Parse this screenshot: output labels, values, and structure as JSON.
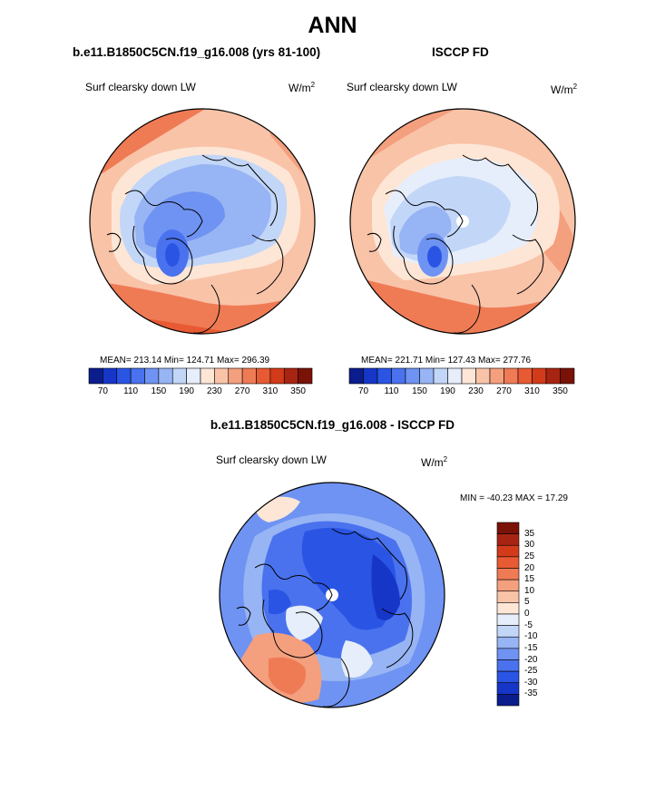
{
  "page": {
    "title": "ANN",
    "diff_title": "b.e11.B1850C5CN.f19_g16.008 - ISCCP FD"
  },
  "panels": [
    {
      "case_title": "b.e11.B1850C5CN.f19_g16.008 (yrs 81-100)",
      "variable": "Surf clearsky down LW",
      "units": "W/m",
      "units_exp": "2",
      "stats": "MEAN= 213.14  Min= 124.71  Max= 296.39"
    },
    {
      "case_title": "ISCCP FD",
      "variable": "Surf clearsky down LW",
      "units": "W/m",
      "units_exp": "2",
      "stats": "MEAN= 221.71  Min= 127.43  Max= 277.76"
    },
    {
      "case_title": "b.e11.B1850C5CN.f19_g16.008 - ISCCP FD",
      "variable": "Surf clearsky down LW",
      "units": "W/m",
      "units_exp": "2",
      "stats": "MIN = -40.23 MAX =  17.29"
    }
  ],
  "chart_data": [
    {
      "type": "heatmap",
      "projection": "north-polar-stereographic",
      "title": "b.e11.B1850C5CN.f19_g16.008 (yrs 81-100)",
      "variable": "Surf clearsky down LW",
      "units": "W/m2",
      "mean": 213.14,
      "min": 124.71,
      "max": 296.39,
      "colorbar_levels": [
        70,
        90,
        110,
        130,
        150,
        170,
        190,
        210,
        230,
        250,
        270,
        290,
        310,
        330,
        350
      ],
      "colorbar_tick_labels": [
        "70",
        "110",
        "150",
        "190",
        "230",
        "270",
        "310",
        "350"
      ],
      "colors": [
        "#0b1d8c",
        "#1636c8",
        "#2a55e4",
        "#4a72ee",
        "#6f93f2",
        "#97b4f4",
        "#c2d6f8",
        "#e6eefb",
        "#fde6d6",
        "#f9c3a8",
        "#f49f7e",
        "#ef7b55",
        "#e85a33",
        "#d23b1a",
        "#a82412",
        "#7a1208"
      ]
    },
    {
      "type": "heatmap",
      "projection": "north-polar-stereographic",
      "title": "ISCCP FD",
      "variable": "Surf clearsky down LW",
      "units": "W/m2",
      "mean": 221.71,
      "min": 127.43,
      "max": 277.76,
      "colorbar_levels": [
        70,
        90,
        110,
        130,
        150,
        170,
        190,
        210,
        230,
        250,
        270,
        290,
        310,
        330,
        350
      ],
      "colorbar_tick_labels": [
        "70",
        "110",
        "150",
        "190",
        "230",
        "270",
        "310",
        "350"
      ],
      "colors": [
        "#0b1d8c",
        "#1636c8",
        "#2a55e4",
        "#4a72ee",
        "#6f93f2",
        "#97b4f4",
        "#c2d6f8",
        "#e6eefb",
        "#fde6d6",
        "#f9c3a8",
        "#f49f7e",
        "#ef7b55",
        "#e85a33",
        "#d23b1a",
        "#a82412",
        "#7a1208"
      ]
    },
    {
      "type": "heatmap",
      "projection": "north-polar-stereographic",
      "title": "b.e11.B1850C5CN.f19_g16.008 - ISCCP FD",
      "variable": "Surf clearsky down LW",
      "units": "W/m2",
      "min": -40.23,
      "max": 17.29,
      "colorbar_levels": [
        -35,
        -30,
        -25,
        -20,
        -15,
        -10,
        -5,
        0,
        5,
        10,
        15,
        20,
        25,
        30,
        35
      ],
      "colorbar_tick_labels": [
        "-35",
        "-30",
        "-25",
        "-20",
        "-15",
        "-10",
        "-5",
        "0",
        "5",
        "10",
        "15",
        "20",
        "25",
        "30",
        "35"
      ],
      "colors": [
        "#0b1d8c",
        "#1636c8",
        "#2a55e4",
        "#4a72ee",
        "#6f93f2",
        "#97b4f4",
        "#c2d6f8",
        "#e6eefb",
        "#fde6d6",
        "#f9c3a8",
        "#f49f7e",
        "#ef7b55",
        "#e85a33",
        "#d23b1a",
        "#a82412",
        "#7a1208"
      ]
    }
  ]
}
